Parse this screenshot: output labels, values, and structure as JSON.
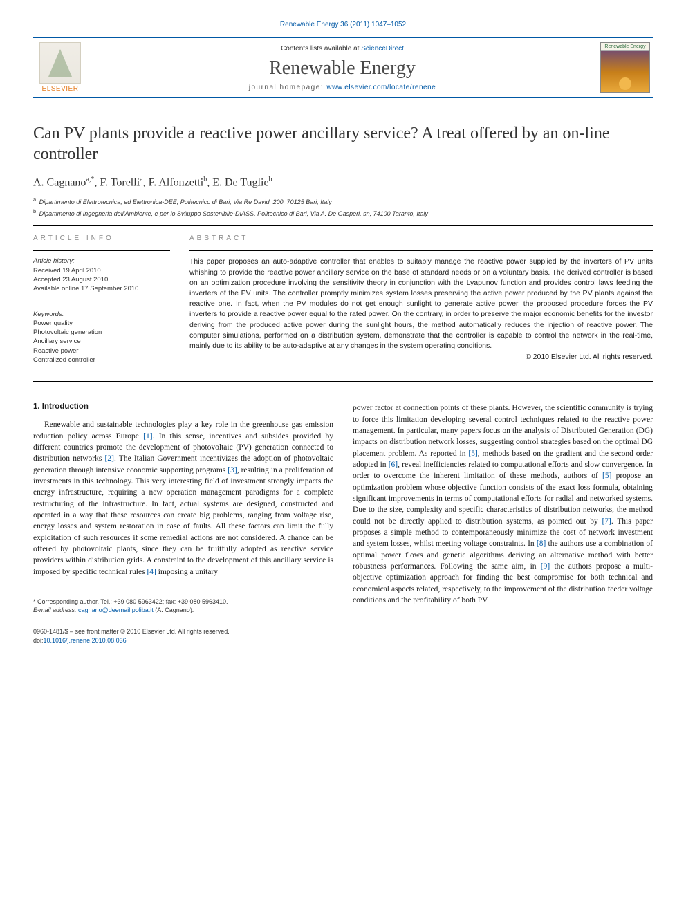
{
  "colors": {
    "brand_blue": "#0058a5",
    "rule": "#000000",
    "muted": "#888888",
    "text": "#1a1a1a",
    "elsevier_orange": "#e67e22",
    "cover_gradient_top": "#5a3d8a",
    "cover_gradient_mid": "#c77f1a",
    "cover_gradient_bot": "#e8a83a"
  },
  "typography": {
    "title_fontsize": 24,
    "journal_title_fontsize": 28,
    "authors_fontsize": 16,
    "body_fontsize": 11.5,
    "abstract_fontsize": 10.5,
    "small_fontsize": 9
  },
  "journal_ref": "Renewable Energy 36 (2011) 1047–1052",
  "header": {
    "contents_prefix": "Contents lists available at ",
    "contents_link": "ScienceDirect",
    "journal_title": "Renewable Energy",
    "homepage_label": "journal homepage: ",
    "homepage_url": "www.elsevier.com/locate/renene",
    "publisher_label": "ELSEVIER",
    "cover_label": "Renewable Energy"
  },
  "title": "Can PV plants provide a reactive power ancillary service? A treat offered by an on-line controller",
  "authors_html": "A. Cagnano<sup>a,*</sup>, F. Torelli<sup>a</sup>, F. Alfonzetti<sup>b</sup>, E. De Tuglie<sup>b</sup>",
  "affiliations": [
    {
      "mark": "a",
      "text": "Dipartimento di Elettrotecnica, ed Elettronica-DEE, Politecnico di Bari, Via Re David, 200, 70125 Bari, Italy"
    },
    {
      "mark": "b",
      "text": "Dipartimento di Ingegneria dell'Ambiente, e per lo Sviluppo Sostenibile-DIASS, Politecnico di Bari, Via A. De Gasperi, sn, 74100 Taranto, Italy"
    }
  ],
  "article_info": {
    "heading": "ARTICLE INFO",
    "history_label": "Article history:",
    "history": [
      "Received 19 April 2010",
      "Accepted 23 August 2010",
      "Available online 17 September 2010"
    ],
    "keywords_label": "Keywords:",
    "keywords": [
      "Power quality",
      "Photovoltaic generation",
      "Ancillary service",
      "Reactive power",
      "Centralized controller"
    ]
  },
  "abstract": {
    "heading": "ABSTRACT",
    "text": "This paper proposes an auto-adaptive controller that enables to suitably manage the reactive power supplied by the inverters of PV units whishing to provide the reactive power ancillary service on the base of standard needs or on a voluntary basis. The derived controller is based on an optimization procedure involving the sensitivity theory in conjunction with the Lyapunov function and provides control laws feeding the inverters of the PV units. The controller promptly minimizes system losses preserving the active power produced by the PV plants against the reactive one. In fact, when the PV modules do not get enough sunlight to generate active power, the proposed procedure forces the PV inverters to provide a reactive power equal to the rated power. On the contrary, in order to preserve the major economic benefits for the investor deriving from the produced active power during the sunlight hours, the method automatically reduces the injection of reactive power. The computer simulations, performed on a distribution system, demonstrate that the controller is capable to control the network in the real-time, mainly due to its ability to be auto-adaptive at any changes in the system operating conditions.",
    "copyright": "© 2010 Elsevier Ltd. All rights reserved."
  },
  "intro": {
    "heading": "1. Introduction",
    "col1": "Renewable and sustainable technologies play a key role in the greenhouse gas emission reduction policy across Europe [1]. In this sense, incentives and subsides provided by different countries promote the development of photovoltaic (PV) generation connected to distribution networks [2]. The Italian Government incentivizes the adoption of photovoltaic generation through intensive economic supporting programs [3], resulting in a proliferation of investments in this technology. This very interesting field of investment strongly impacts the energy infrastructure, requiring a new operation management paradigms for a complete restructuring of the infrastructure. In fact, actual systems are designed, constructed and operated in a way that these resources can create big problems, ranging from voltage rise, energy losses and system restoration in case of faults. All these factors can limit the fully exploitation of such resources if some remedial actions are not considered. A chance can be offered by photovoltaic plants, since they can be fruitfully adopted as reactive service providers within distribution grids. A constraint to the development of this ancillary service is imposed by specific technical rules [4] imposing a unitary",
    "col2": "power factor at connection points of these plants. However, the scientific community is trying to force this limitation developing several control techniques related to the reactive power management. In particular, many papers focus on the analysis of Distributed Generation (DG) impacts on distribution network losses, suggesting control strategies based on the optimal DG placement problem. As reported in [5], methods based on the gradient and the second order adopted in [6], reveal inefficiencies related to computational efforts and slow convergence. In order to overcome the inherent limitation of these methods, authors of [5] propose an optimization problem whose objective function consists of the exact loss formula, obtaining significant improvements in terms of computational efforts for radial and networked systems. Due to the size, complexity and specific characteristics of distribution networks, the method could not be directly applied to distribution systems, as pointed out by [7]. This paper proposes a simple method to contemporaneously minimize the cost of network investment and system losses, whilst meeting voltage constraints. In [8] the authors use a combination of optimal power flows and genetic algorithms deriving an alternative method with better robustness performances. Following the same aim, in [9] the authors propose a multi-objective optimization approach for finding the best compromise for both technical and economical aspects related, respectively, to the improvement of the distribution feeder voltage conditions and the profitability of both PV"
  },
  "footnotes": {
    "corr": "* Corresponding author. Tel.: +39 080 5963422; fax: +39 080 5963410.",
    "email_label": "E-mail address:",
    "email": "cagnano@deemail.poliba.it",
    "email_who": "(A. Cagnano)."
  },
  "footer": {
    "front_matter": "0960-1481/$ – see front matter © 2010 Elsevier Ltd. All rights reserved.",
    "doi_label": "doi:",
    "doi": "10.1016/j.renene.2010.08.036"
  }
}
